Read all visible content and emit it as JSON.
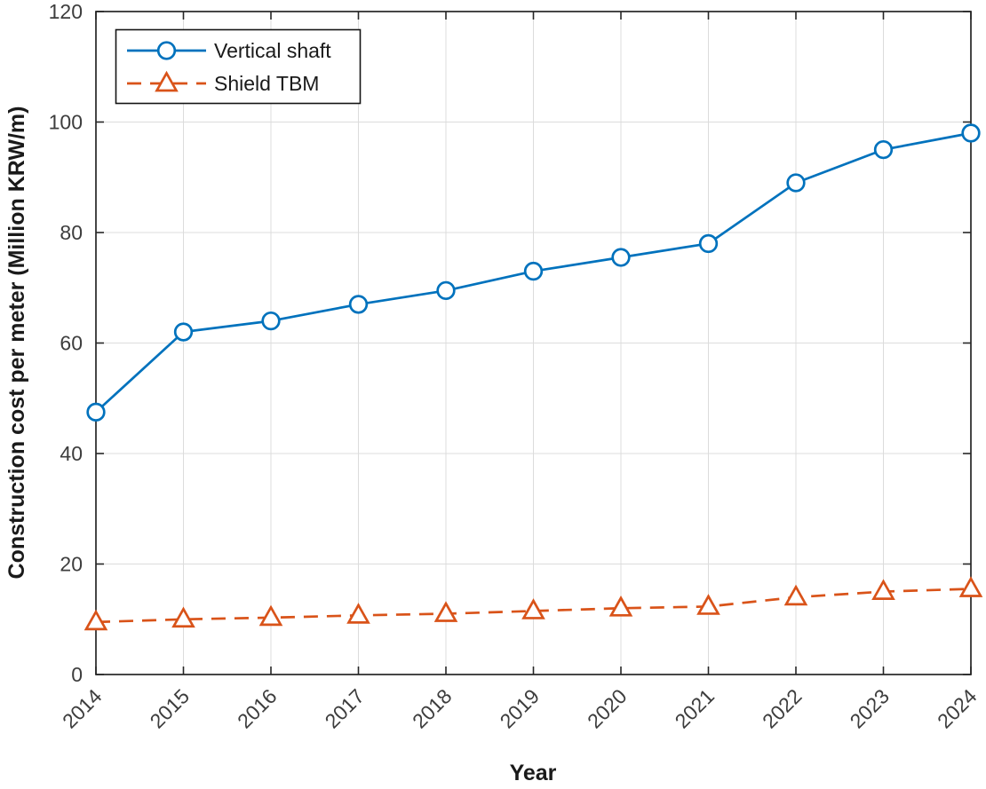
{
  "figure": {
    "background": "#ffffff"
  },
  "chart_data": {
    "type": "line",
    "x": [
      2014,
      2015,
      2016,
      2017,
      2018,
      2019,
      2020,
      2021,
      2022,
      2023,
      2024
    ],
    "xlabel": "Year",
    "ylabel": "Construction cost per meter (Million KRW/m)",
    "ylim": [
      0,
      120
    ],
    "yticks": [
      0,
      20,
      40,
      60,
      80,
      100,
      120
    ],
    "grid": true,
    "x_tick_angle": 45,
    "legend_position": "top-left",
    "series": [
      {
        "name": "Vertical shaft",
        "color": "#0072BD",
        "linestyle": "solid",
        "marker": "circle",
        "values": [
          47.5,
          62,
          64,
          67,
          69.5,
          73,
          75.5,
          78,
          89,
          95,
          98
        ]
      },
      {
        "name": "Shield TBM",
        "color": "#D95319",
        "linestyle": "dashed",
        "marker": "triangle",
        "values": [
          9.5,
          10,
          10.3,
          10.7,
          11,
          11.5,
          12,
          12.3,
          14,
          15,
          15.5
        ]
      }
    ]
  },
  "style": {
    "axis_color": "#262626",
    "tick_label_color": "#3d3d3d",
    "label_color": "#1a1a1a",
    "grid_color": "#dcdcdc",
    "legend_border_color": "#141414",
    "legend_background": "#ffffff"
  }
}
